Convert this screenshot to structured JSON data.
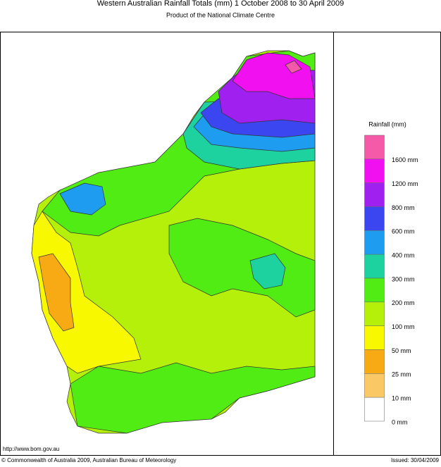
{
  "header": {
    "title": "Western Australian Rainfall Totals (mm) 1 October 2008 to 30 April 2009",
    "subtitle": "Product of the National Climate Centre"
  },
  "legend": {
    "title": "Rainfall (mm)",
    "items": [
      {
        "label": "1600 mm",
        "color": "#f45aa8"
      },
      {
        "label": "1200 mm",
        "color": "#f010f0"
      },
      {
        "label": "800 mm",
        "color": "#a020f0"
      },
      {
        "label": "600 mm",
        "color": "#3c46f0"
      },
      {
        "label": "400 mm",
        "color": "#1e9cf0"
      },
      {
        "label": "300 mm",
        "color": "#1ed2a0"
      },
      {
        "label": "200 mm",
        "color": "#50ec14"
      },
      {
        "label": "100 mm",
        "color": "#b4f00a"
      },
      {
        "label": "50 mm",
        "color": "#f8f800"
      },
      {
        "label": "25 mm",
        "color": "#f8aa14"
      },
      {
        "label": "10 mm",
        "color": "#fac864"
      },
      {
        "label": "0 mm",
        "color": "#ffffff"
      }
    ]
  },
  "footer": {
    "url": "http://www.bom.gov.au",
    "copyright": "© Commonwealth of Australia 2009, Australian Bureau of Meteorology",
    "issued": "Issued: 30/04/2009"
  }
}
